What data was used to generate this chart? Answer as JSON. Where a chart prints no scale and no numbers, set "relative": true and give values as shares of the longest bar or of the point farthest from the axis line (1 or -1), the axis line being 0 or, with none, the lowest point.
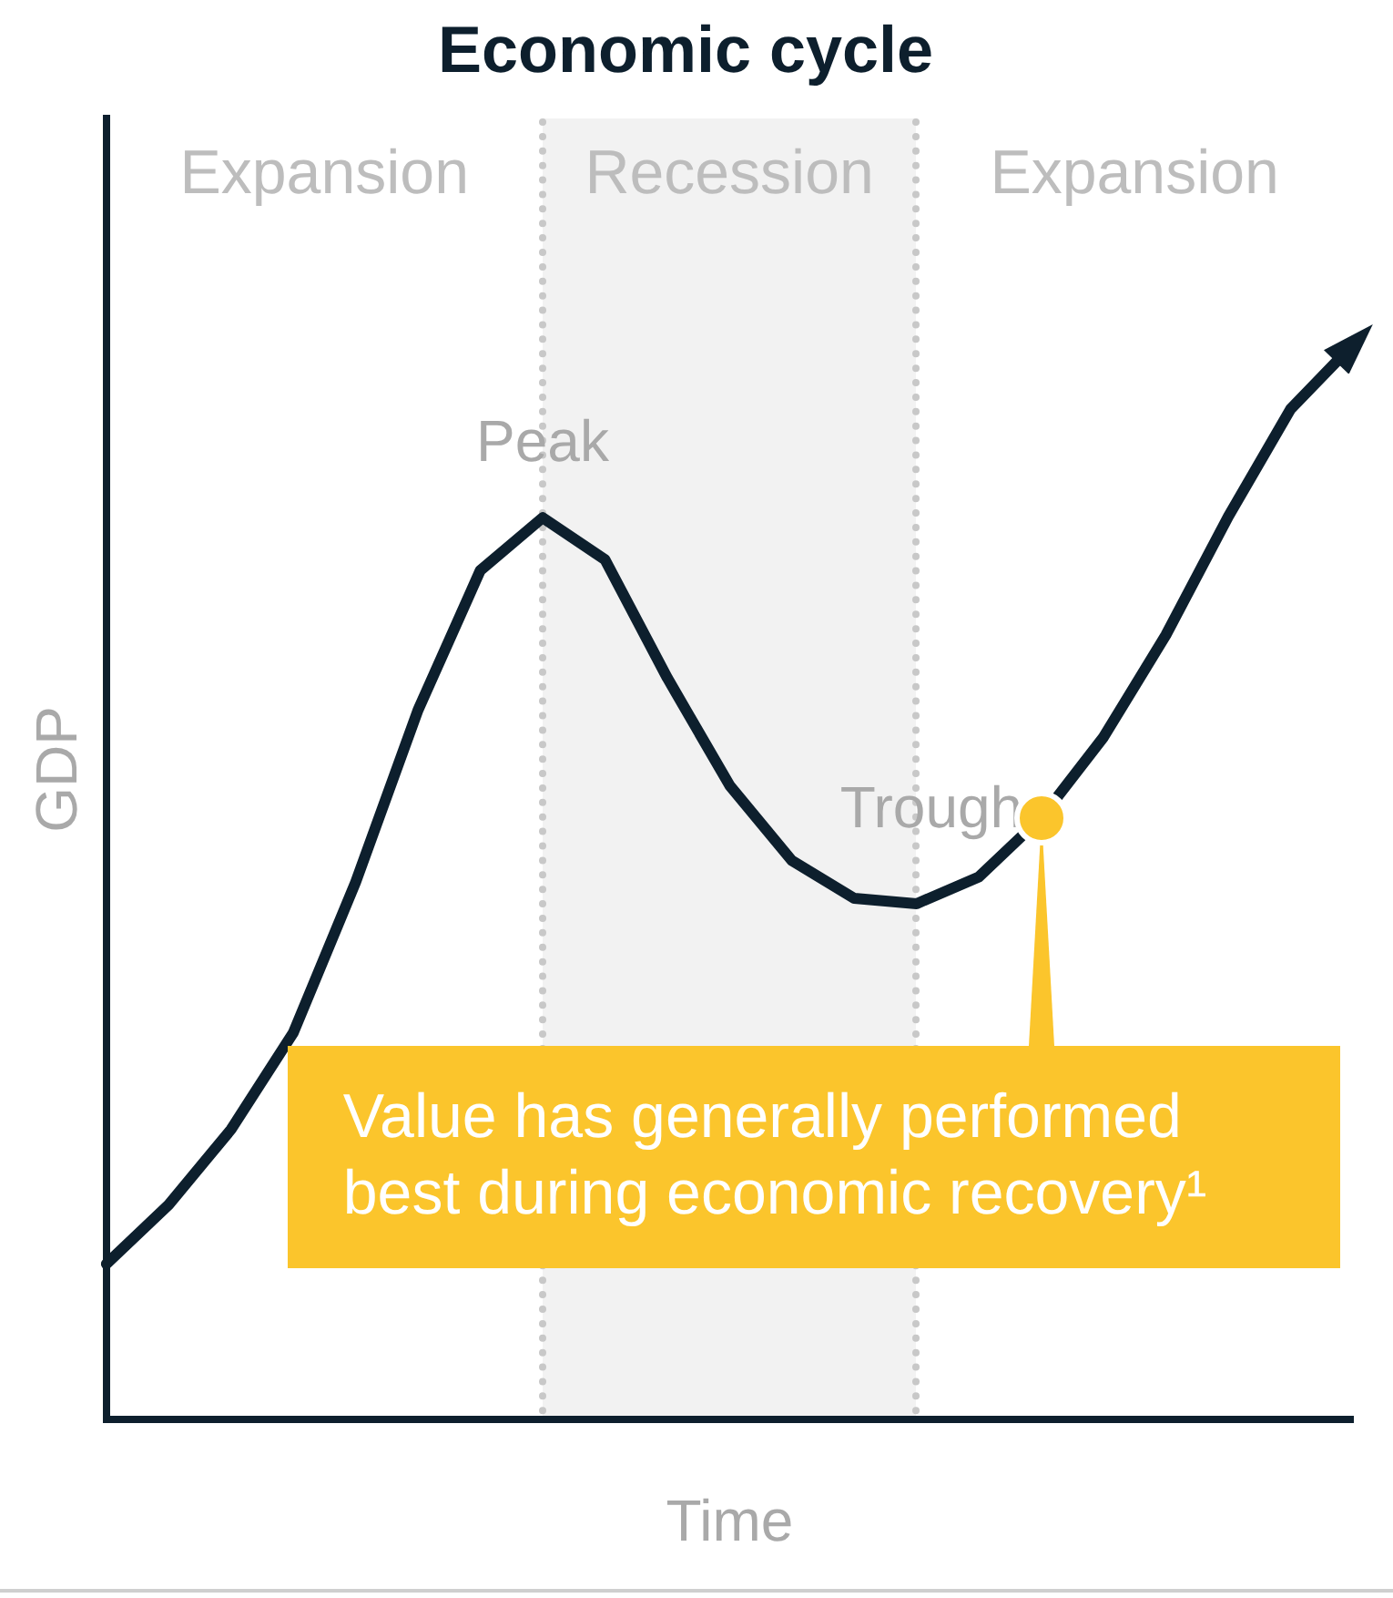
{
  "chart_data": {
    "type": "line",
    "title": "Economic cycle",
    "xlabel": "Time",
    "ylabel": "GDP",
    "relative": true,
    "categories": [
      null,
      null,
      null,
      null,
      null,
      null,
      null,
      null,
      null,
      null,
      null,
      null,
      null,
      null,
      null,
      null,
      null,
      null,
      null,
      null,
      null
    ],
    "legend": false,
    "marker": "none",
    "line_style": "solid",
    "series": [
      {
        "color": "#0d1f2d",
        "values": [
          0.145,
          0.2,
          0.27,
          0.36,
          0.5,
          0.66,
          0.79,
          0.839,
          0.8,
          0.69,
          0.59,
          0.52,
          0.485,
          0.48,
          0.505,
          0.56,
          0.635,
          0.73,
          0.84,
          0.94,
          1
        ]
      }
    ],
    "annotations": [
      "Expansion",
      "Recession",
      "Expansion",
      "Peak",
      "Trough",
      "Value has generally performed best during economic recovery¹"
    ]
  }
}
